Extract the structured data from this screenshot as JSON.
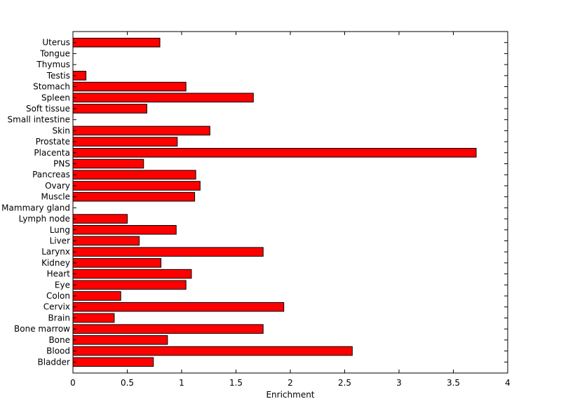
{
  "chart_data": {
    "type": "bar",
    "orientation": "horizontal",
    "title": "",
    "xlabel": "Enrichment",
    "ylabel": "",
    "xlim": [
      0,
      4
    ],
    "xticks": [
      "0",
      "0.5",
      "1",
      "1.5",
      "2",
      "2.5",
      "3",
      "3.5",
      "4"
    ],
    "grid": false,
    "bar_color": "#ff0000",
    "edge_color": "#000000",
    "categories": [
      "Bladder",
      "Blood",
      "Bone",
      "Bone marrow",
      "Brain",
      "Cervix",
      "Colon",
      "Eye",
      "Heart",
      "Kidney",
      "Larynx",
      "Liver",
      "Lung",
      "Lymph node",
      "Mammary gland",
      "Muscle",
      "Ovary",
      "Pancreas",
      "PNS",
      "Placenta",
      "Prostate",
      "Skin",
      "Small intestine",
      "Soft tissue",
      "Spleen",
      "Stomach",
      "Testis",
      "Thymus",
      "Tongue",
      "Uterus"
    ],
    "values": [
      0.74,
      2.57,
      0.87,
      1.75,
      0.38,
      1.94,
      0.44,
      1.04,
      1.09,
      0.81,
      1.75,
      0.61,
      0.95,
      0.5,
      0.0,
      1.12,
      1.17,
      1.13,
      0.65,
      3.71,
      0.96,
      1.26,
      0.0,
      0.68,
      1.66,
      1.04,
      0.12,
      0.0,
      0.0,
      0.8
    ]
  }
}
